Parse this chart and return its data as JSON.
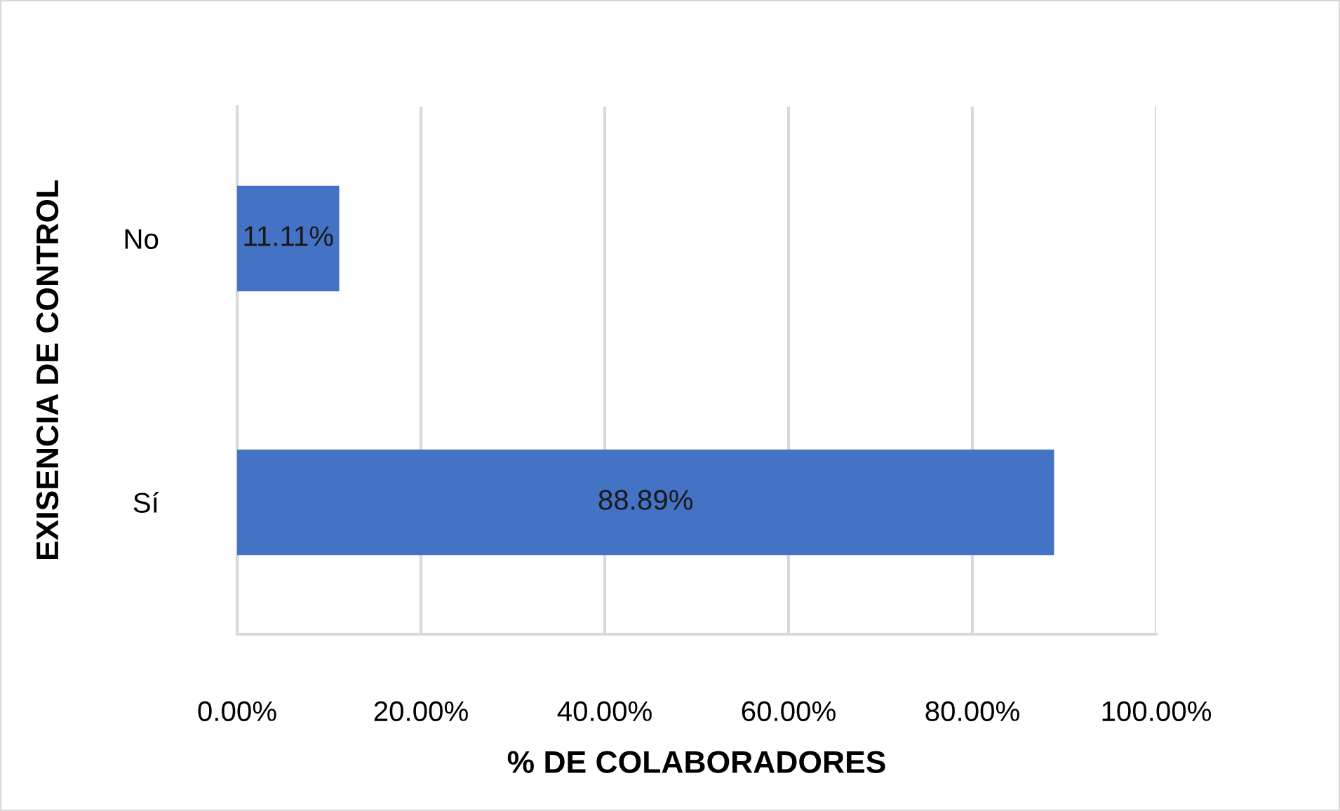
{
  "chart_data": {
    "type": "bar",
    "orientation": "horizontal",
    "xlabel": "% DE COLABORADORES",
    "ylabel": "EXISENCIA DE CONTROL",
    "categories": [
      "No",
      "Sí"
    ],
    "values": [
      11.11,
      88.89
    ],
    "value_labels": [
      "11.11%",
      "88.89%"
    ],
    "color": "#4472c4",
    "xlim": [
      0,
      100
    ],
    "xticks": [
      {
        "value": 0,
        "label": "0.00%"
      },
      {
        "value": 20,
        "label": "20.00%"
      },
      {
        "value": 40,
        "label": "40.00%"
      },
      {
        "value": 60,
        "label": "60.00%"
      },
      {
        "value": 80,
        "label": "80.00%"
      },
      {
        "value": 100,
        "label": "100.00%"
      }
    ],
    "grid": "x",
    "legend": false
  }
}
